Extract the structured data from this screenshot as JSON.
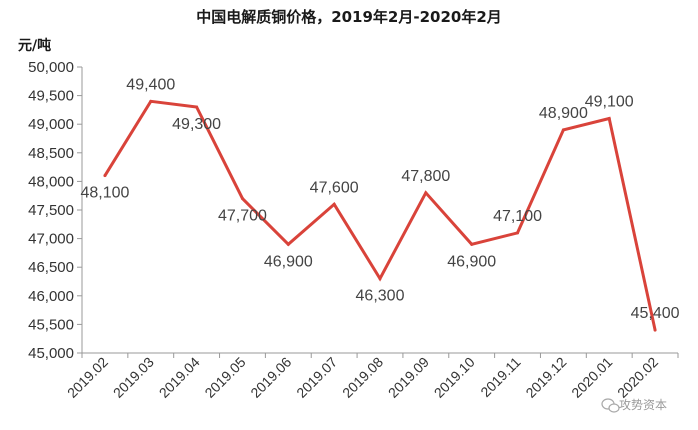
{
  "chart_data": {
    "type": "line",
    "title": "中国电解质铜价格，2019年2月-2020年2月",
    "ylabel": "元/吨",
    "xlabel": "",
    "categories": [
      "2019.02",
      "2019.03",
      "2019.04",
      "2019.05",
      "2019.06",
      "2019.07",
      "2019.08",
      "2019.09",
      "2019.10",
      "2019.11",
      "2019.12",
      "2020.01",
      "2020.02"
    ],
    "series": [
      {
        "values": [
          48100,
          49400,
          49300,
          47700,
          46900,
          47600,
          46300,
          47800,
          46900,
          47100,
          48900,
          49100,
          45400
        ]
      }
    ],
    "data_labels": [
      "48,100",
      "49,400",
      "49,300",
      "47,700",
      "46,900",
      "47,600",
      "46,300",
      "47,800",
      "46,900",
      "47,100",
      "48,900",
      "49,100",
      "45,400"
    ],
    "ylim": [
      45000,
      50000
    ],
    "yticks": [
      45000,
      45500,
      46000,
      46500,
      47000,
      47500,
      48000,
      48500,
      49000,
      49500,
      50000
    ],
    "ytick_labels": [
      "45,000",
      "45,500",
      "46,000",
      "46,500",
      "47,000",
      "47,500",
      "48,000",
      "48,500",
      "49,000",
      "49,500",
      "50,000"
    ],
    "grid": false,
    "legend": "none",
    "line_color": "#d9433a",
    "axis_color": "#999999"
  },
  "watermark": {
    "text": "攻势资本",
    "icon": "wechat-icon"
  }
}
